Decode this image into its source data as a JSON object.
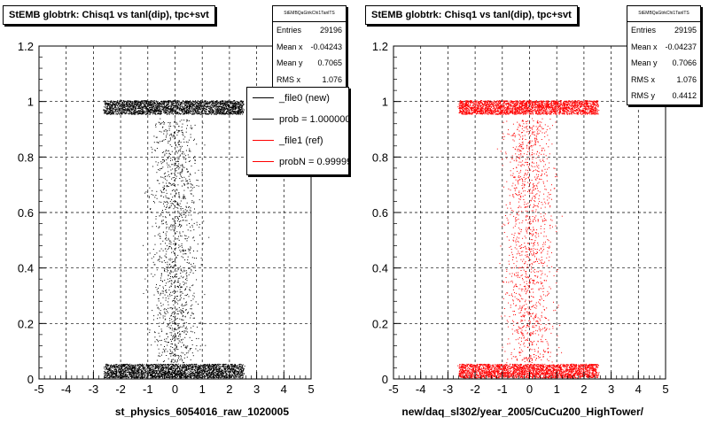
{
  "chart_data": [
    {
      "type": "scatter",
      "title": "StEMB globtrk: Chisq1 vs tanl(dip), tpc+svt",
      "xlabel": "st_physics_6054016_raw_1020005",
      "ylabel": "",
      "xlim": [
        -5,
        5
      ],
      "ylim": [
        0,
        1.2
      ],
      "xticks": [
        -5,
        -4,
        -3,
        -2,
        -1,
        0,
        1,
        2,
        3,
        4,
        5
      ],
      "yticks": [
        0,
        0.2,
        0.4,
        0.6,
        0.8,
        1,
        1.2
      ],
      "grid": true,
      "marker_color": "#000000",
      "series": [
        {
          "name": "_file0 (new)",
          "bands": [
            {
              "x_range": [
                -2.6,
                2.5
              ],
              "y_center": 0.98,
              "y_halfwidth": 0.025,
              "density": "high"
            },
            {
              "x_range": [
                -2.6,
                2.5
              ],
              "y_center": 0.03,
              "y_halfwidth": 0.025,
              "density": "high"
            },
            {
              "x_range": [
                -2.6,
                2.6
              ],
              "y_range": [
                0.06,
                0.94
              ],
              "density": "sparse"
            }
          ]
        }
      ],
      "stats": {
        "title": "StEMBQaGtrkChi1TanlTS",
        "rows": [
          {
            "label": "Entries",
            "value": "29196"
          },
          {
            "label": "Mean x",
            "value": "-0.04243"
          },
          {
            "label": "Mean y",
            "value": "0.7065"
          },
          {
            "label": "RMS x",
            "value": "1.076"
          }
        ]
      },
      "legend": {
        "position": "top-right",
        "entries": [
          {
            "label": "_file0 (new)",
            "color": "#000000"
          },
          {
            "label": "prob = 1.000000",
            "color": "#000000"
          },
          {
            "label": "_file1 (ref)",
            "color": "#ff0000"
          },
          {
            "label": "probN = 0.999999",
            "color": "#ff0000"
          }
        ]
      }
    },
    {
      "type": "scatter",
      "title": "StEMB globtrk: Chisq1 vs tanl(dip), tpc+svt",
      "xlabel": "new/daq_sl302/year_2005/CuCu200_HighTower/",
      "ylabel": "",
      "xlim": [
        -5,
        5
      ],
      "ylim": [
        0,
        1.2
      ],
      "xticks": [
        -5,
        -4,
        -3,
        -2,
        -1,
        0,
        1,
        2,
        3,
        4,
        5
      ],
      "yticks": [
        0,
        0.2,
        0.4,
        0.6,
        0.8,
        1,
        1.2
      ],
      "grid": true,
      "marker_color": "#ff0000",
      "series": [
        {
          "name": "_file1 (ref)",
          "bands": [
            {
              "x_range": [
                -2.6,
                2.5
              ],
              "y_center": 0.98,
              "y_halfwidth": 0.025,
              "density": "high"
            },
            {
              "x_range": [
                -2.6,
                2.5
              ],
              "y_center": 0.03,
              "y_halfwidth": 0.025,
              "density": "high"
            },
            {
              "x_range": [
                -2.6,
                2.6
              ],
              "y_range": [
                0.06,
                0.94
              ],
              "density": "sparse"
            }
          ]
        }
      ],
      "stats": {
        "title": "StEMBQaGtrkChi1TanlTS",
        "rows": [
          {
            "label": "Entries",
            "value": "29195"
          },
          {
            "label": "Mean x",
            "value": "-0.04237"
          },
          {
            "label": "Mean y",
            "value": "0.7066"
          },
          {
            "label": "RMS x",
            "value": "1.076"
          },
          {
            "label": "RMS y",
            "value": "0.4412"
          }
        ]
      }
    }
  ]
}
